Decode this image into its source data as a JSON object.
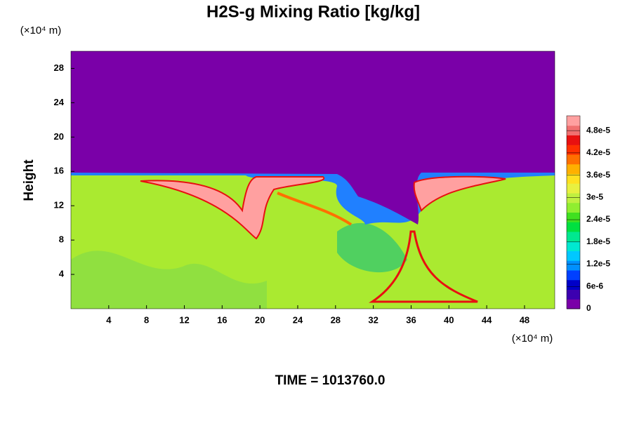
{
  "chart_data": {
    "type": "contour",
    "title": "H2S-g Mixing Ratio [kg/kg]",
    "y_unit": "(×10⁴ m)",
    "x_unit": "(×10⁴ m)",
    "ylabel": "Height",
    "footer": "TIME = 1013760.0",
    "xlim": [
      0,
      51.2
    ],
    "xticks": [
      4,
      8,
      12,
      16,
      20,
      24,
      28,
      32,
      36,
      40,
      44,
      48
    ],
    "ylim": [
      0,
      30
    ],
    "yticks": [
      4,
      8,
      12,
      16,
      20,
      24,
      28
    ],
    "colorbar": {
      "lim": [
        0,
        5.2e-05
      ],
      "ticks": [
        0,
        {
          "value": 6e-06,
          "label": "6e-6"
        },
        {
          "value": 1.2e-05,
          "label": "1.2e-5"
        },
        {
          "value": 1.8e-05,
          "label": "1.8e-5"
        },
        {
          "value": 2.4e-05,
          "label": "2.4e-5"
        },
        {
          "value": 3e-05,
          "label": "3e-5"
        },
        {
          "value": 3.6e-05,
          "label": "3.6e-5"
        },
        {
          "value": 4.2e-05,
          "label": "4.2e-5"
        },
        {
          "value": 4.8e-05,
          "label": "4.8e-5"
        }
      ],
      "colors": [
        "#7a00a8",
        "#3c00b0",
        "#0000c8",
        "#0040ff",
        "#0090ff",
        "#00c8ff",
        "#00e8d0",
        "#00e890",
        "#00e040",
        "#40e020",
        "#90ee30",
        "#c0f040",
        "#e8f040",
        "#ffe020",
        "#ffb000",
        "#ff7000",
        "#ff3000",
        "#e81010",
        "#f07070",
        "#ffa0a0"
      ]
    }
  }
}
